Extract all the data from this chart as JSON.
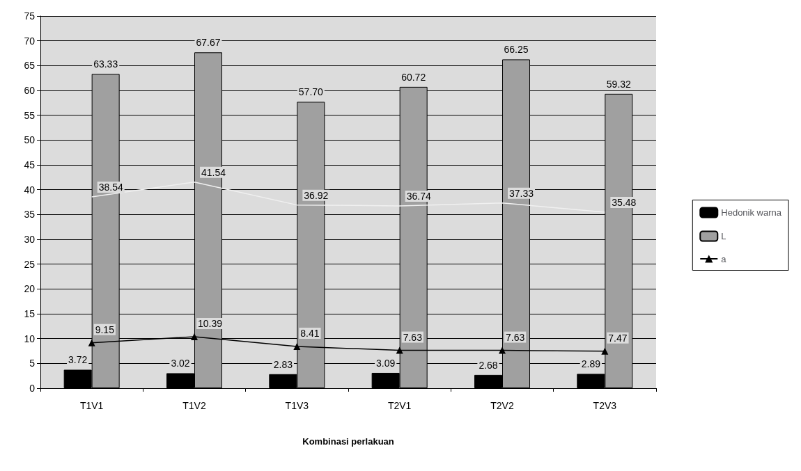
{
  "chart_data": {
    "type": "bar",
    "xlabel": "Kombinasi perlakuan",
    "categories": [
      "T1V1",
      "T1V2",
      "T1V3",
      "T2V1",
      "T2V2",
      "T2V3"
    ],
    "series": [
      {
        "name": "Hedonik warna",
        "color": "#000000",
        "values": [
          3.72,
          3.02,
          2.83,
          3.09,
          2.68,
          2.89
        ],
        "value_labels": [
          "3.72",
          "3.02",
          "2.83",
          "3.09",
          "2.68",
          "2.89"
        ]
      },
      {
        "name": "L",
        "color": "#a0a0a0",
        "values": [
          63.33,
          67.67,
          57.7,
          60.72,
          66.25,
          59.32
        ],
        "value_labels": [
          "63.33",
          "67.67",
          "57.70",
          "60.72",
          "66.25",
          "59.32"
        ]
      },
      {
        "name": "a",
        "type": "line",
        "color": "#000000",
        "marker": "triangle",
        "values": [
          9.15,
          10.39,
          8.41,
          7.63,
          7.63,
          7.47
        ],
        "value_labels": [
          "9.15",
          "10.39",
          "8.41",
          "7.63",
          "7.63",
          "7.47"
        ]
      },
      {
        "type": "line",
        "color": "#f0f0f0",
        "marker": "none",
        "values": [
          38.54,
          41.54,
          36.92,
          36.74,
          37.33,
          35.48
        ],
        "value_labels": [
          "38.54",
          "41.54",
          "36.92",
          "36.74",
          "37.33",
          "35.48"
        ]
      }
    ],
    "ylim": [
      0,
      75
    ],
    "yticks": [
      0,
      5,
      10,
      15,
      20,
      25,
      30,
      35,
      40,
      45,
      50,
      55,
      60,
      65,
      70,
      75
    ],
    "grid": "y",
    "legend": "right"
  }
}
